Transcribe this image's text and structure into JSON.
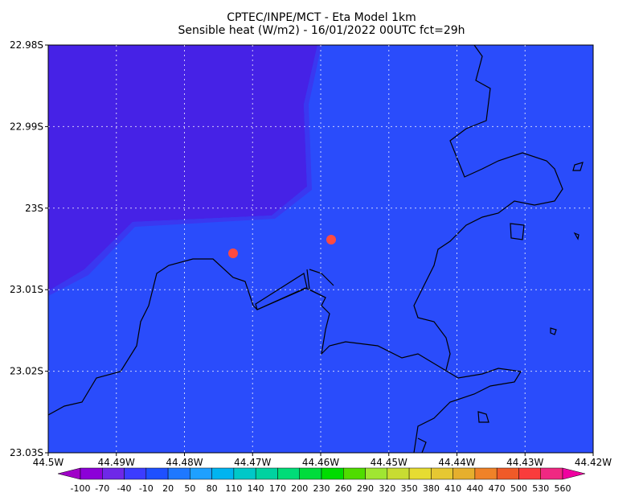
{
  "title": [
    "CPTEC/INPE/MCT -  Eta Model 1km",
    "Sensible heat (W/m2) - 16/01/2022 00UTC fct=29h"
  ],
  "map": {
    "y_labels": [
      "22.98S",
      "22.99S",
      "23S",
      "23.01S",
      "23.02S",
      "23.03S"
    ],
    "x_labels": [
      "44.5W",
      "44.49W",
      "44.48W",
      "44.47W",
      "44.46W",
      "44.45W",
      "44.44W",
      "44.43W",
      "44.42W"
    ]
  },
  "colorbar": {
    "labels": [
      -100,
      -70,
      -40,
      -10,
      20,
      50,
      80,
      110,
      140,
      170,
      200,
      230,
      260,
      290,
      320,
      350,
      380,
      410,
      440,
      470,
      500,
      530,
      560
    ],
    "colors": [
      "#a000c8",
      "#8c00d8",
      "#6e28e8",
      "#3c3cff",
      "#1e50ff",
      "#1e78ff",
      "#1ea0ff",
      "#00b4f0",
      "#00c8c8",
      "#00d2a0",
      "#00dc78",
      "#00dc3c",
      "#00dc00",
      "#50dc00",
      "#a0e632",
      "#c8dc32",
      "#e6dc32",
      "#e6c832",
      "#e6af2d",
      "#f08228",
      "#f05a28",
      "#fa3c3c",
      "#f02882",
      "#f000a0"
    ]
  }
}
